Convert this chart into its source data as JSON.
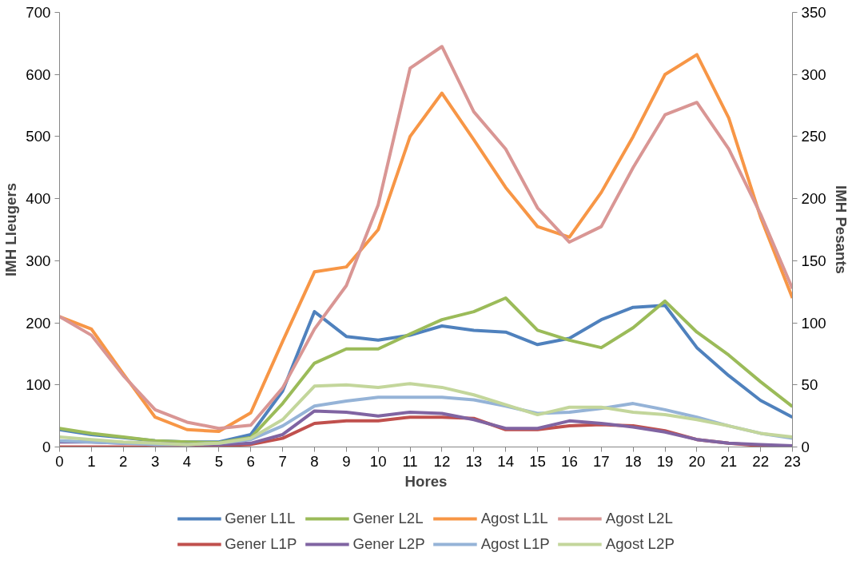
{
  "chart_data": {
    "type": "line",
    "xlabel": "Hores",
    "ylabel": "IMH Lleugers",
    "y2label": "IMH Pesants",
    "x": [
      0,
      1,
      2,
      3,
      4,
      5,
      6,
      7,
      8,
      9,
      10,
      11,
      12,
      13,
      14,
      15,
      16,
      17,
      18,
      19,
      20,
      21,
      22,
      23
    ],
    "xlim": [
      0,
      23
    ],
    "xticks": [
      0,
      1,
      2,
      3,
      4,
      5,
      6,
      7,
      8,
      9,
      10,
      11,
      12,
      13,
      14,
      15,
      16,
      17,
      18,
      19,
      20,
      21,
      22,
      23
    ],
    "ylim": [
      0,
      700
    ],
    "yticks": [
      0,
      100,
      200,
      300,
      400,
      500,
      600,
      700
    ],
    "y2lim": [
      0,
      350
    ],
    "y2ticks": [
      0,
      50,
      100,
      150,
      200,
      250,
      300,
      350
    ],
    "grid": false,
    "legend": "bottom",
    "marker": "none",
    "line_style": "solid",
    "series": [
      {
        "name": "Gener L1L",
        "color": "#4f81bd",
        "values": [
          28,
          20,
          15,
          10,
          8,
          8,
          20,
          90,
          218,
          178,
          172,
          180,
          195,
          188,
          185,
          165,
          175,
          205,
          225,
          228,
          160,
          115,
          75,
          48
        ]
      },
      {
        "name": "Gener L2L",
        "color": "#9bbb59",
        "values": [
          30,
          22,
          16,
          10,
          8,
          7,
          15,
          70,
          135,
          158,
          158,
          182,
          205,
          218,
          240,
          188,
          172,
          160,
          192,
          235,
          185,
          148,
          105,
          65
        ]
      },
      {
        "name": "Agost L1L",
        "color": "#f79646",
        "values": [
          210,
          190,
          118,
          48,
          28,
          25,
          55,
          170,
          282,
          290,
          350,
          500,
          570,
          495,
          418,
          355,
          338,
          410,
          500,
          600,
          632,
          530,
          370,
          240
        ]
      },
      {
        "name": "Agost L2L",
        "color": "#d99694",
        "values": [
          210,
          180,
          115,
          60,
          40,
          30,
          35,
          95,
          190,
          260,
          390,
          610,
          645,
          540,
          480,
          385,
          330,
          355,
          450,
          535,
          555,
          480,
          375,
          255
        ]
      },
      {
        "name": "Gener L1P",
        "color": "#c0504d",
        "axis": "y2",
        "values": [
          0,
          0,
          0,
          0,
          0,
          1,
          2,
          7,
          19,
          21,
          21,
          24,
          24,
          23,
          14,
          14,
          17,
          18,
          17,
          13,
          6,
          3,
          1,
          1
        ]
      },
      {
        "name": "Gener L2P",
        "color": "#8064a2",
        "axis": "y2",
        "values": [
          4,
          4,
          3,
          3,
          2,
          2,
          3,
          10,
          29,
          28,
          25,
          28,
          27,
          22,
          15,
          15,
          21,
          19,
          16,
          12,
          6,
          3,
          2,
          1
        ]
      },
      {
        "name": "Agost L1P",
        "color": "#95b3d7",
        "axis": "y2",
        "values": [
          5,
          4,
          3,
          2,
          2,
          3,
          6,
          17,
          33,
          37,
          40,
          40,
          40,
          38,
          33,
          27,
          28,
          31,
          35,
          30,
          24,
          17,
          11,
          7
        ]
      },
      {
        "name": "Agost L2P",
        "color": "#c3d69b",
        "axis": "y2",
        "values": [
          8,
          6,
          4,
          3,
          2,
          3,
          7,
          22,
          49,
          50,
          48,
          51,
          48,
          42,
          34,
          26,
          32,
          32,
          28,
          26,
          22,
          17,
          11,
          8
        ]
      }
    ]
  }
}
